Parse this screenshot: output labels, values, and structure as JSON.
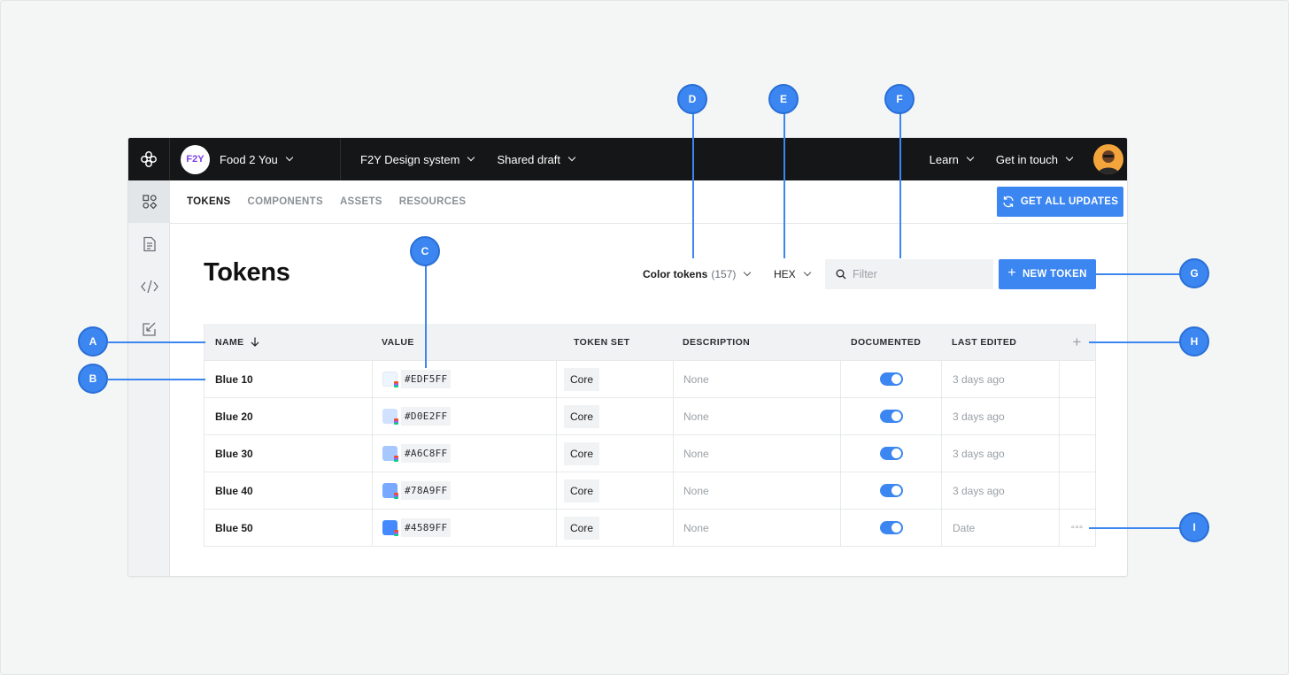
{
  "colors": {
    "accent": "#3b86f0",
    "topbar": "#151617",
    "canvas": "#f4f6f6"
  },
  "topbar": {
    "org_badge": "F2Y",
    "org_name": "Food 2 You",
    "design_system": "F2Y Design system",
    "draft": "Shared draft",
    "learn": "Learn",
    "contact": "Get in touch"
  },
  "sidebar": {
    "icons": [
      "tokens-icon",
      "document-icon",
      "code-icon",
      "review-icon"
    ]
  },
  "subnav": {
    "tabs": [
      "TOKENS",
      "COMPONENTS",
      "ASSETS",
      "RESOURCES"
    ],
    "active": "TOKENS",
    "updates_button": "GET ALL UPDATES"
  },
  "page": {
    "title": "Tokens",
    "type_selector": "Color tokens",
    "type_count": "(157)",
    "format_selector": "HEX",
    "filter_placeholder": "Filter",
    "new_token_button": "NEW TOKEN"
  },
  "table": {
    "headers": [
      "NAME",
      "VALUE",
      "TOKEN SET",
      "DESCRIPTION",
      "DOCUMENTED",
      "LAST EDITED"
    ],
    "rows": [
      {
        "name": "Blue 10",
        "swatch": "#EDF5FF",
        "hex": "#EDF5FF",
        "set": "Core",
        "description": "None",
        "documented": true,
        "edited": "3 days ago"
      },
      {
        "name": "Blue 20",
        "swatch": "#D0E2FF",
        "hex": "#D0E2FF",
        "set": "Core",
        "description": "None",
        "documented": true,
        "edited": "3 days ago"
      },
      {
        "name": "Blue 30",
        "swatch": "#A6C8FF",
        "hex": "#A6C8FF",
        "set": "Core",
        "description": "None",
        "documented": true,
        "edited": "3 days ago"
      },
      {
        "name": "Blue 40",
        "swatch": "#78A9FF",
        "hex": "#78A9FF",
        "set": "Core",
        "description": "None",
        "documented": true,
        "edited": "3 days ago"
      },
      {
        "name": "Blue 50",
        "swatch": "#4589FF",
        "hex": "#4589FF",
        "set": "Core",
        "description": "None",
        "documented": true,
        "edited": "Date"
      }
    ]
  },
  "callouts": [
    "A",
    "B",
    "C",
    "D",
    "E",
    "F",
    "G",
    "H",
    "I"
  ]
}
